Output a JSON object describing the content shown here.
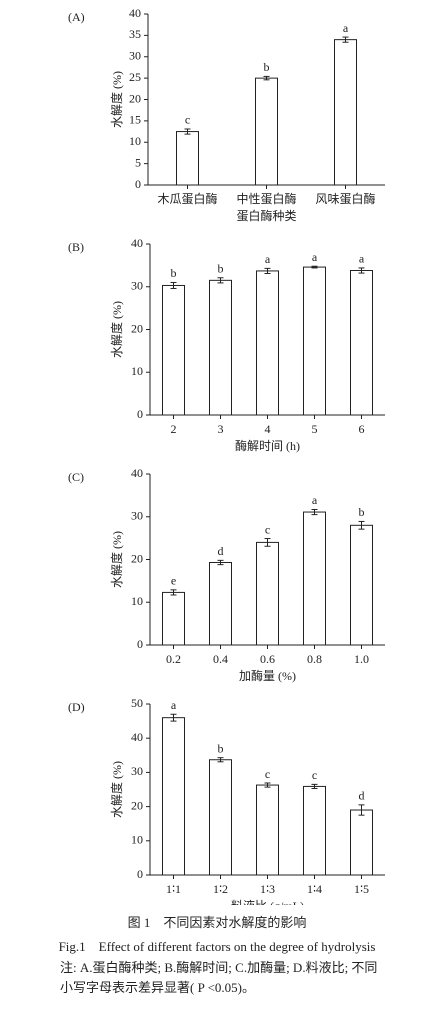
{
  "chart_data": [
    {
      "type": "bar",
      "panel": "(A)",
      "ylabel": "水解度 (%)",
      "xlabel": "蛋白酶种类",
      "categories": [
        "木瓜蛋白酶",
        "中性蛋白酶",
        "风味蛋白酶"
      ],
      "values": [
        12.5,
        25,
        34
      ],
      "errors": [
        0.6,
        0.4,
        0.6
      ],
      "letters": [
        "c",
        "b",
        "a"
      ],
      "ylim": [
        0,
        40
      ],
      "yticks": [
        0,
        5,
        10,
        15,
        20,
        25,
        30,
        35,
        40
      ],
      "color": "#ffffff"
    },
    {
      "type": "bar",
      "panel": "(B)",
      "ylabel": "水解度 (%)",
      "xlabel": "酶解时间 (h)",
      "categories": [
        "2",
        "3",
        "4",
        "5",
        "6"
      ],
      "values": [
        30.3,
        31.5,
        33.7,
        34.6,
        33.8
      ],
      "errors": [
        0.7,
        0.6,
        0.6,
        0.2,
        0.6
      ],
      "letters": [
        "b",
        "b",
        "a",
        "a",
        "a"
      ],
      "ylim": [
        0,
        40
      ],
      "yticks": [
        0,
        10,
        20,
        30,
        40
      ],
      "color": "#ffffff"
    },
    {
      "type": "bar",
      "panel": "(C)",
      "ylabel": "水解度 (%)",
      "xlabel": "加酶量 (%)",
      "categories": [
        "0.2",
        "0.4",
        "0.6",
        "0.8",
        "1.0"
      ],
      "values": [
        12.3,
        19.3,
        24,
        31.1,
        28
      ],
      "errors": [
        0.6,
        0.5,
        0.9,
        0.6,
        0.9
      ],
      "letters": [
        "e",
        "d",
        "c",
        "a",
        "b"
      ],
      "ylim": [
        0,
        40
      ],
      "yticks": [
        0,
        10,
        20,
        30,
        40
      ],
      "color": "#ffffff"
    },
    {
      "type": "bar",
      "panel": "(D)",
      "ylabel": "水解度 (%)",
      "xlabel": "料液比 (g/mL)",
      "categories": [
        "1∶1",
        "1∶2",
        "1∶3",
        "1∶4",
        "1∶5"
      ],
      "values": [
        46,
        33.7,
        26.3,
        25.9,
        19
      ],
      "errors": [
        1,
        0.6,
        0.6,
        0.6,
        1.5
      ],
      "letters": [
        "a",
        "b",
        "c",
        "c",
        "d"
      ],
      "ylim": [
        0,
        50
      ],
      "yticks": [
        0,
        10,
        20,
        30,
        40,
        50
      ],
      "color": "#ffffff"
    }
  ],
  "figure": {
    "caption_cn": "图 1　不同因素对水解度的影响",
    "caption_en": "Fig.1　Effect of different factors on the degree of hydrolysis",
    "note": "注: A.蛋白酶种类; B.酶解时间; C.加酶量; D.料液比; 不同小写字母表示差异显著( P <0.05)。"
  }
}
